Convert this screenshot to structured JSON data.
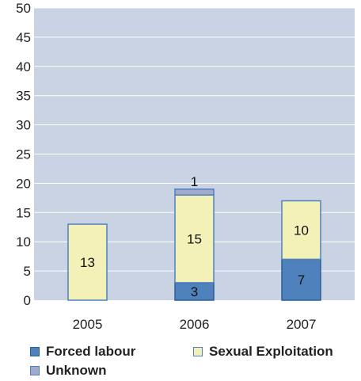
{
  "chart_data": {
    "type": "bar",
    "stacked": true,
    "categories": [
      "2005",
      "2006",
      "2007"
    ],
    "series": [
      {
        "name": "Forced labour",
        "values": [
          0,
          3,
          7
        ],
        "color": "#4f81bd",
        "border": "#2e5f95"
      },
      {
        "name": "Sexual Exploitation",
        "values": [
          13,
          15,
          10
        ],
        "color": "#f3f0b8",
        "border": "#4f81bd"
      },
      {
        "name": "Unknown",
        "values": [
          0,
          1,
          0
        ],
        "color": "#a2a9c9",
        "border": "#4f81bd"
      }
    ],
    "data_labels": [
      {
        "category": "2005",
        "series": "Sexual Exploitation",
        "text": "13"
      },
      {
        "category": "2006",
        "series": "Forced labour",
        "text": "3"
      },
      {
        "category": "2006",
        "series": "Sexual Exploitation",
        "text": "15"
      },
      {
        "category": "2006",
        "series": "Unknown",
        "text": "1"
      },
      {
        "category": "2007",
        "series": "Forced labour",
        "text": "7"
      },
      {
        "category": "2007",
        "series": "Sexual Exploitation",
        "text": "10"
      }
    ],
    "yticks": [
      "0",
      "5",
      "10",
      "15",
      "20",
      "25",
      "30",
      "35",
      "40",
      "45",
      "50"
    ],
    "ylim": [
      0,
      50
    ],
    "grid": true,
    "legend_position": "bottom",
    "plot_background": "#c9d3e3",
    "grid_color": "#ffffff"
  }
}
